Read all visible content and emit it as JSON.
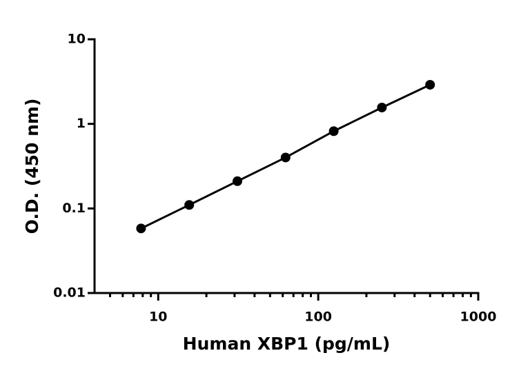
{
  "chart_data": {
    "type": "scatter",
    "x_label": "Human XBP1 (pg/mL)",
    "y_label": "O.D. (450 nm)",
    "x": [
      7.8125,
      15.625,
      31.25,
      62.5,
      125,
      250,
      500
    ],
    "series": [
      {
        "color": "#000000",
        "values": [
          0.058,
          0.11,
          0.21,
          0.4,
          0.82,
          1.56,
          2.9
        ]
      }
    ],
    "x_log": true,
    "y_log": true,
    "connect_points": true,
    "xlim": [
      4,
      1000
    ],
    "ylim": [
      0.01,
      10
    ],
    "xticks": [
      10,
      100,
      1000
    ],
    "yticks": [
      0.01,
      0.1,
      1,
      10
    ],
    "x_minor_ticks": [
      5,
      6,
      7,
      8,
      9,
      20,
      30,
      40,
      50,
      60,
      70,
      80,
      90,
      200,
      300,
      400,
      500,
      600,
      700,
      800,
      900
    ],
    "grid": false
  }
}
